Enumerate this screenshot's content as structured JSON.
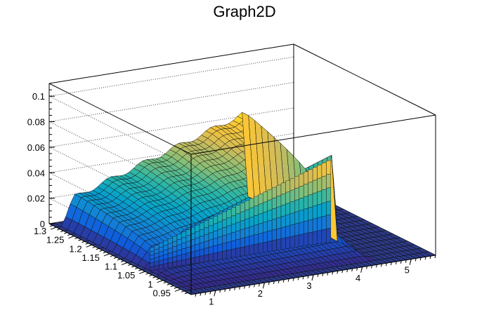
{
  "chart_data": {
    "type": "surface",
    "title": "Graph2D",
    "xlabel": "",
    "ylabel": "",
    "zlabel": "",
    "x_range": [
      0.5,
      5.5
    ],
    "y_range": [
      0.92,
      1.32
    ],
    "z_range": [
      0,
      0.11
    ],
    "x_ticks": [
      "1",
      "2",
      "3",
      "4",
      "5"
    ],
    "y_ticks": [
      "0.95",
      "1",
      "1.05",
      "1.1",
      "1.15",
      "1.2",
      "1.25",
      "1.3"
    ],
    "z_ticks": [
      "0",
      "0.02",
      "0.04",
      "0.06",
      "0.08",
      "0.1"
    ],
    "grid": true,
    "palette": [
      "#352a87",
      "#0f5cdd",
      "#1481d6",
      "#06a4ca",
      "#2eb7a4",
      "#87bf77",
      "#d1bb59",
      "#fec832",
      "#f9fb0e"
    ],
    "surface_description_points": [
      {
        "x": 0.6,
        "y": 1.3,
        "z": 0.0
      },
      {
        "x": 0.7,
        "y": 1.28,
        "z": 0.018
      },
      {
        "x": 1.0,
        "y": 1.25,
        "z": 0.02
      },
      {
        "x": 2.0,
        "y": 1.25,
        "z": 0.035
      },
      {
        "x": 3.0,
        "y": 1.25,
        "z": 0.05
      },
      {
        "x": 4.0,
        "y": 1.25,
        "z": 0.062
      },
      {
        "x": 4.3,
        "y": 1.25,
        "z": 0.065
      },
      {
        "x": 4.3,
        "y": 1.1,
        "z": 0.066
      },
      {
        "x": 4.3,
        "y": 0.95,
        "z": 0.06
      },
      {
        "x": 4.4,
        "y": 1.0,
        "z": 0.0
      },
      {
        "x": 1.5,
        "y": 1.1,
        "z": 0.02
      },
      {
        "x": 0.6,
        "y": 1.05,
        "z": 0.0
      }
    ]
  }
}
